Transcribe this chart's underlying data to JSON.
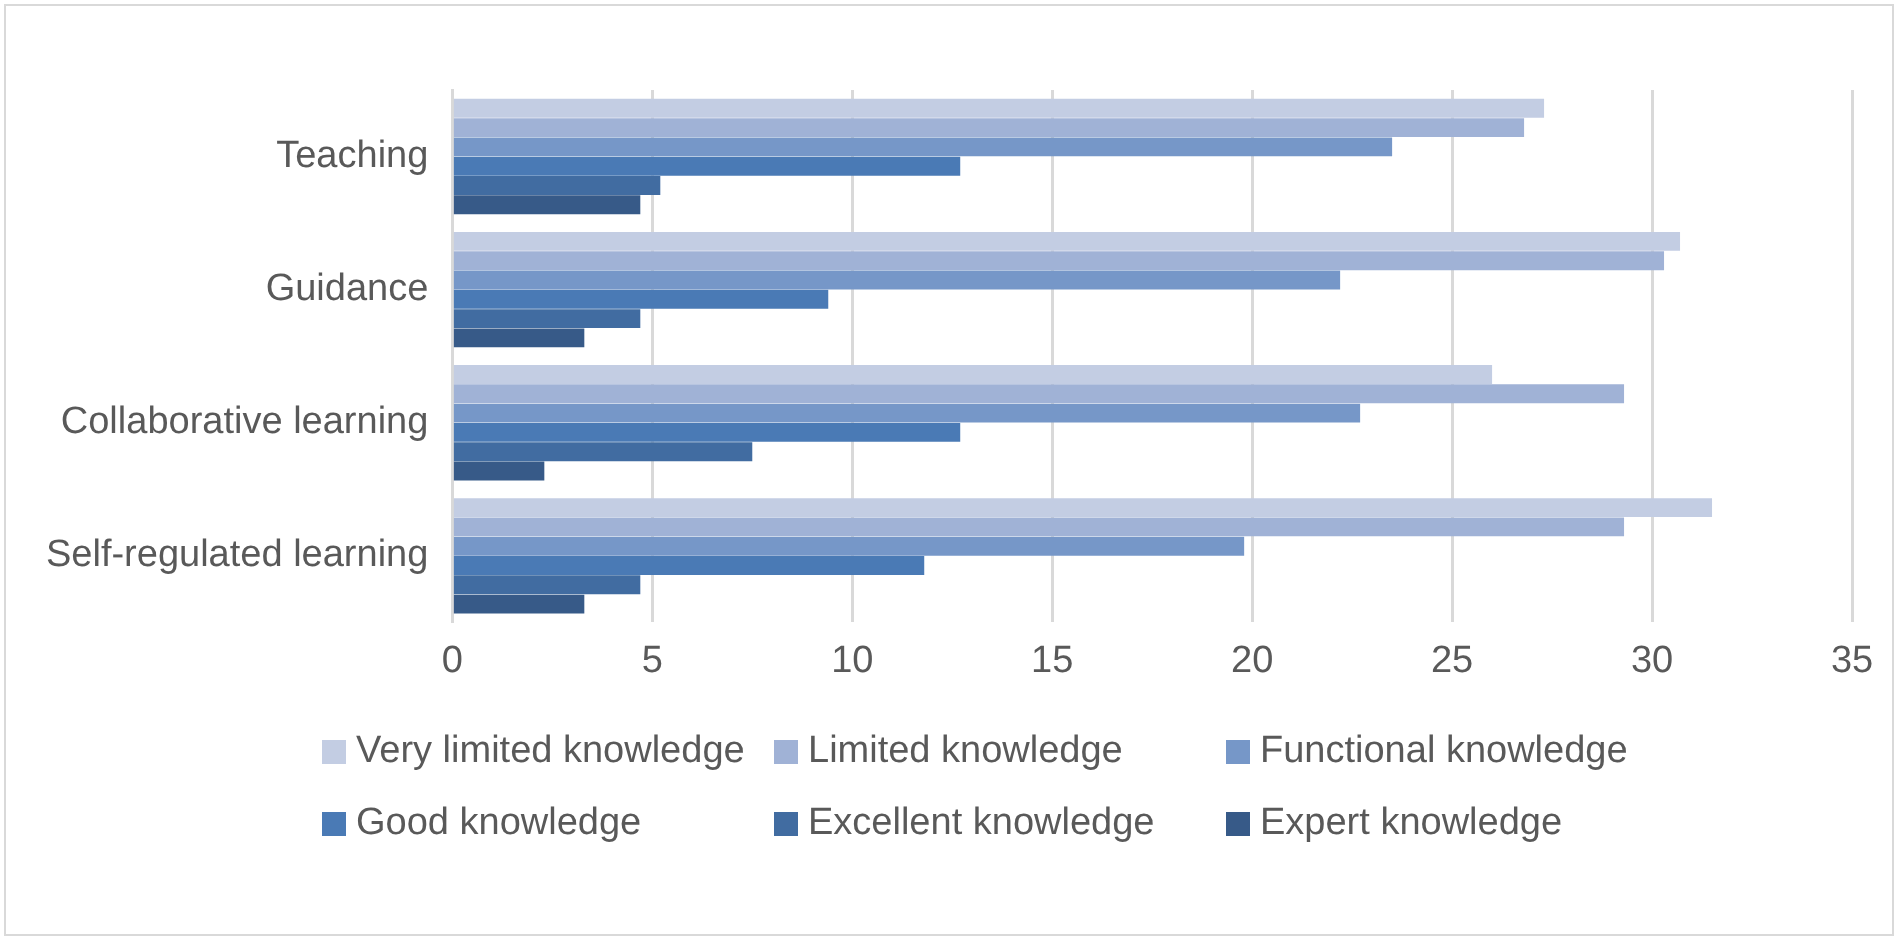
{
  "chart_data": {
    "type": "bar",
    "orientation": "horizontal",
    "categories": [
      "Teaching",
      "Guidance",
      "Collaborative learning",
      "Self-regulated learning"
    ],
    "series": [
      {
        "name": "Very limited knowledge",
        "color": "#c3cde3",
        "values": [
          27.3,
          30.7,
          26.0,
          31.5
        ]
      },
      {
        "name": "Limited knowledge",
        "color": "#a0b2d6",
        "values": [
          26.8,
          30.3,
          29.3,
          29.3
        ]
      },
      {
        "name": "Functional knowledge",
        "color": "#7697c8",
        "values": [
          23.5,
          22.2,
          22.7,
          19.8
        ]
      },
      {
        "name": "Good knowledge",
        "color": "#4a7ab5",
        "values": [
          12.7,
          9.4,
          12.7,
          11.8
        ]
      },
      {
        "name": "Excellent knowledge",
        "color": "#416ca1",
        "values": [
          5.2,
          4.7,
          7.5,
          4.7
        ]
      },
      {
        "name": "Expert knowledge",
        "color": "#375a88",
        "values": [
          4.7,
          3.3,
          2.3,
          3.3
        ]
      }
    ],
    "xlim": [
      0,
      35
    ],
    "xticks": [
      0,
      5,
      10,
      15,
      20,
      25,
      30,
      35
    ],
    "grid": "x",
    "legend": "bottom"
  }
}
